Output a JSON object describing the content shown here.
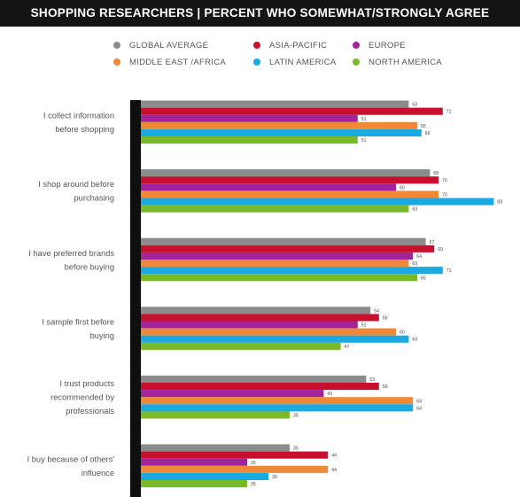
{
  "header": {
    "title": "SHOPPING RESEARCHERS | PERCENT WHO SOMEWHAT/STRONGLY AGREE"
  },
  "legend": [
    {
      "label": "GLOBAL AVERAGE",
      "color": "#8c8c8c"
    },
    {
      "label": "ASIA-PACIFIC",
      "color": "#c8102e"
    },
    {
      "label": "EUROPE",
      "color": "#a3239d"
    },
    {
      "label": "MIDDLE EAST /AFRICA",
      "color": "#f0883a"
    },
    {
      "label": "LATIN AMERICA",
      "color": "#1aa9e0"
    },
    {
      "label": "NORTH AMERICA",
      "color": "#7ab929"
    }
  ],
  "chart_data": {
    "type": "bar",
    "orientation": "horizontal",
    "title": "SHOPPING RESEARCHERS | PERCENT WHO SOMEWHAT/STRONGLY AGREE",
    "categories": [
      [
        "I collect information",
        "before shopping"
      ],
      [
        "I shop around before",
        "purchasing"
      ],
      [
        "I have preferred brands",
        "before buying"
      ],
      [
        "I sample first before",
        "buying"
      ],
      [
        "I trust products",
        "recommended by",
        "professionals"
      ],
      [
        "I buy because of others'",
        "influence"
      ]
    ],
    "series": [
      {
        "name": "GLOBAL AVERAGE",
        "color": "#8c8c8c",
        "values": [
          63,
          68,
          67,
          54,
          53,
          35
        ]
      },
      {
        "name": "ASIA-PACIFIC",
        "color": "#c8102e",
        "values": [
          71,
          70,
          69,
          56,
          56,
          44
        ]
      },
      {
        "name": "EUROPE",
        "color": "#a3239d",
        "values": [
          51,
          60,
          64,
          51,
          43,
          25
        ]
      },
      {
        "name": "MIDDLE EAST /AFRICA",
        "color": "#f0883a",
        "values": [
          65,
          70,
          63,
          60,
          64,
          44
        ]
      },
      {
        "name": "LATIN AMERICA",
        "color": "#1aa9e0",
        "values": [
          66,
          83,
          71,
          63,
          64,
          30
        ]
      },
      {
        "name": "NORTH AMERICA",
        "color": "#7ab929",
        "values": [
          51,
          63,
          65,
          47,
          35,
          25
        ]
      }
    ],
    "xlim": [
      0,
      100
    ],
    "grid": false,
    "legend_position": "top"
  }
}
